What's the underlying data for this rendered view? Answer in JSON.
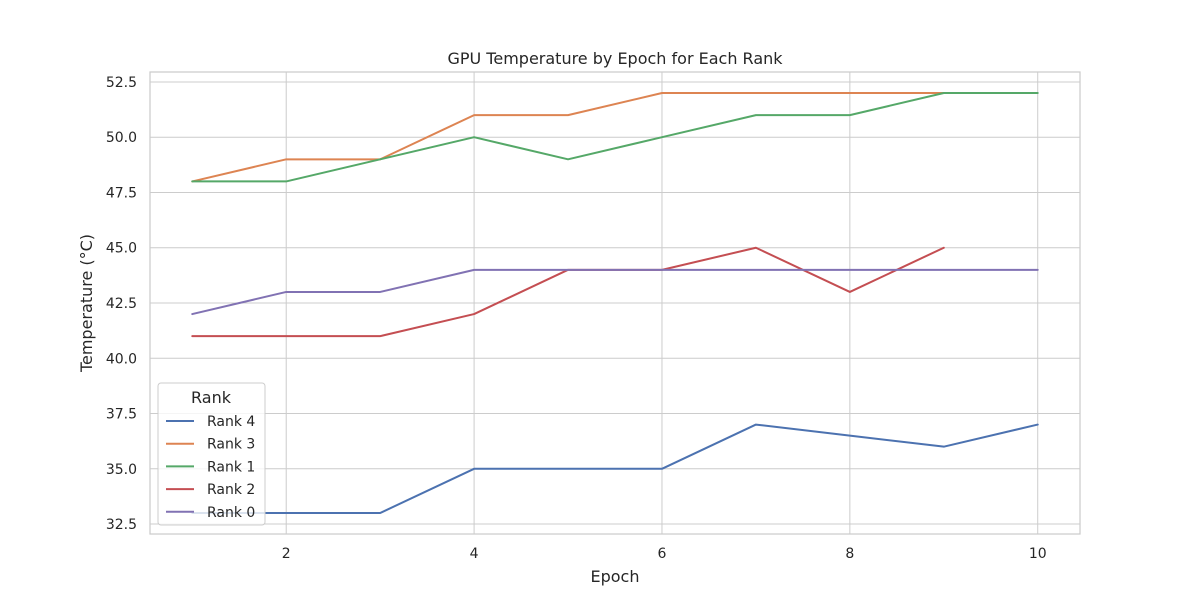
{
  "chart_data": {
    "type": "line",
    "title": "GPU Temperature by Epoch for Each Rank",
    "xlabel": "Epoch",
    "ylabel": "Temperature (°C)",
    "xlim": [
      0.55,
      10.45
    ],
    "ylim": [
      32.05,
      52.95
    ],
    "xticks": [
      2,
      4,
      6,
      8,
      10
    ],
    "yticks": [
      32.5,
      35.0,
      37.5,
      40.0,
      42.5,
      45.0,
      47.5,
      50.0,
      52.5
    ],
    "grid": true,
    "legend": {
      "title": "Rank",
      "placement": "lower-left"
    },
    "series": [
      {
        "name": "Rank 4",
        "color": "#4c72b0",
        "x": [
          1,
          2,
          3,
          4,
          5,
          6,
          7,
          8,
          9,
          10
        ],
        "y": [
          33,
          33,
          33,
          35,
          35,
          35,
          37,
          36.5,
          36,
          37
        ]
      },
      {
        "name": "Rank 3",
        "color": "#dd8452",
        "x": [
          1,
          2,
          3,
          4,
          5,
          6,
          7,
          8,
          9
        ],
        "y": [
          48,
          49,
          49,
          51,
          51,
          52,
          52,
          52,
          52
        ]
      },
      {
        "name": "Rank 1",
        "color": "#55a868",
        "x": [
          1,
          2,
          3,
          4,
          5,
          6,
          7,
          8,
          9,
          10
        ],
        "y": [
          48,
          48,
          49,
          50,
          49,
          50,
          51,
          51,
          52,
          52
        ]
      },
      {
        "name": "Rank 2",
        "color": "#c44e52",
        "x": [
          1,
          2,
          3,
          4,
          5,
          6,
          7,
          8,
          9
        ],
        "y": [
          41,
          41,
          41,
          42,
          44,
          44,
          45,
          43,
          45
        ]
      },
      {
        "name": "Rank 0",
        "color": "#8172b3",
        "x": [
          1,
          2,
          3,
          4,
          5,
          6,
          7,
          8,
          9,
          10
        ],
        "y": [
          42,
          43,
          43,
          44,
          44,
          44,
          44,
          44,
          44,
          44
        ]
      }
    ]
  }
}
